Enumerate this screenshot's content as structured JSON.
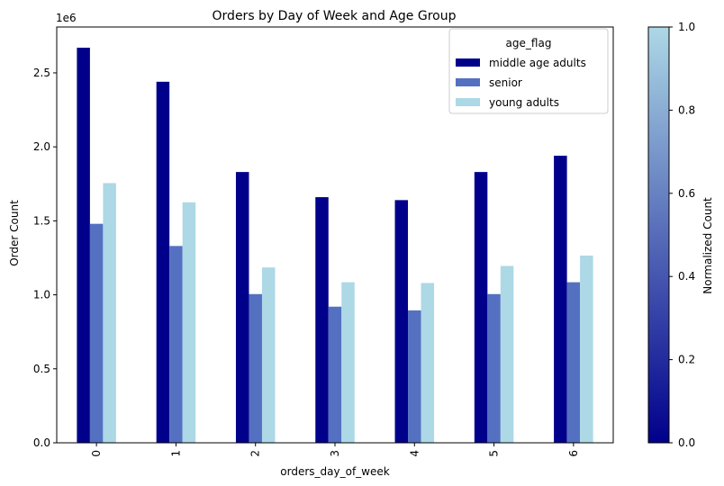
{
  "chart_data": {
    "type": "bar",
    "title": "Orders by Day of Week and Age Group",
    "xlabel": "orders_day_of_week",
    "ylabel": "Order Count",
    "y_offset_label": "1e6",
    "y_scale": 1000000,
    "categories": [
      "0",
      "1",
      "2",
      "3",
      "4",
      "5",
      "6"
    ],
    "ylim": [
      0,
      2810000
    ],
    "yticks": [
      0,
      500000,
      1000000,
      1500000,
      2000000,
      2500000
    ],
    "ytick_labels": [
      "0.0",
      "0.5",
      "1.0",
      "1.5",
      "2.0",
      "2.5"
    ],
    "grid": false,
    "legend": {
      "title": "age_flag",
      "placement": "top-right"
    },
    "series": [
      {
        "name": "middle age adults",
        "color": "#00008b",
        "values": [
          2670000,
          2440000,
          1830000,
          1660000,
          1640000,
          1830000,
          1940000
        ]
      },
      {
        "name": "senior",
        "color": "#5470c0",
        "values": [
          1480000,
          1330000,
          1005000,
          920000,
          895000,
          1005000,
          1085000
        ]
      },
      {
        "name": "young adults",
        "color": "#add8e6",
        "values": [
          1755000,
          1625000,
          1185000,
          1085000,
          1080000,
          1195000,
          1265000
        ]
      }
    ],
    "colorbar": {
      "label": "Normalized Count",
      "range": [
        0,
        1
      ],
      "ticks": [
        "0.0",
        "0.2",
        "0.4",
        "0.6",
        "0.8",
        "1.0"
      ],
      "colors": [
        "#00008b",
        "#add8e6"
      ]
    }
  }
}
